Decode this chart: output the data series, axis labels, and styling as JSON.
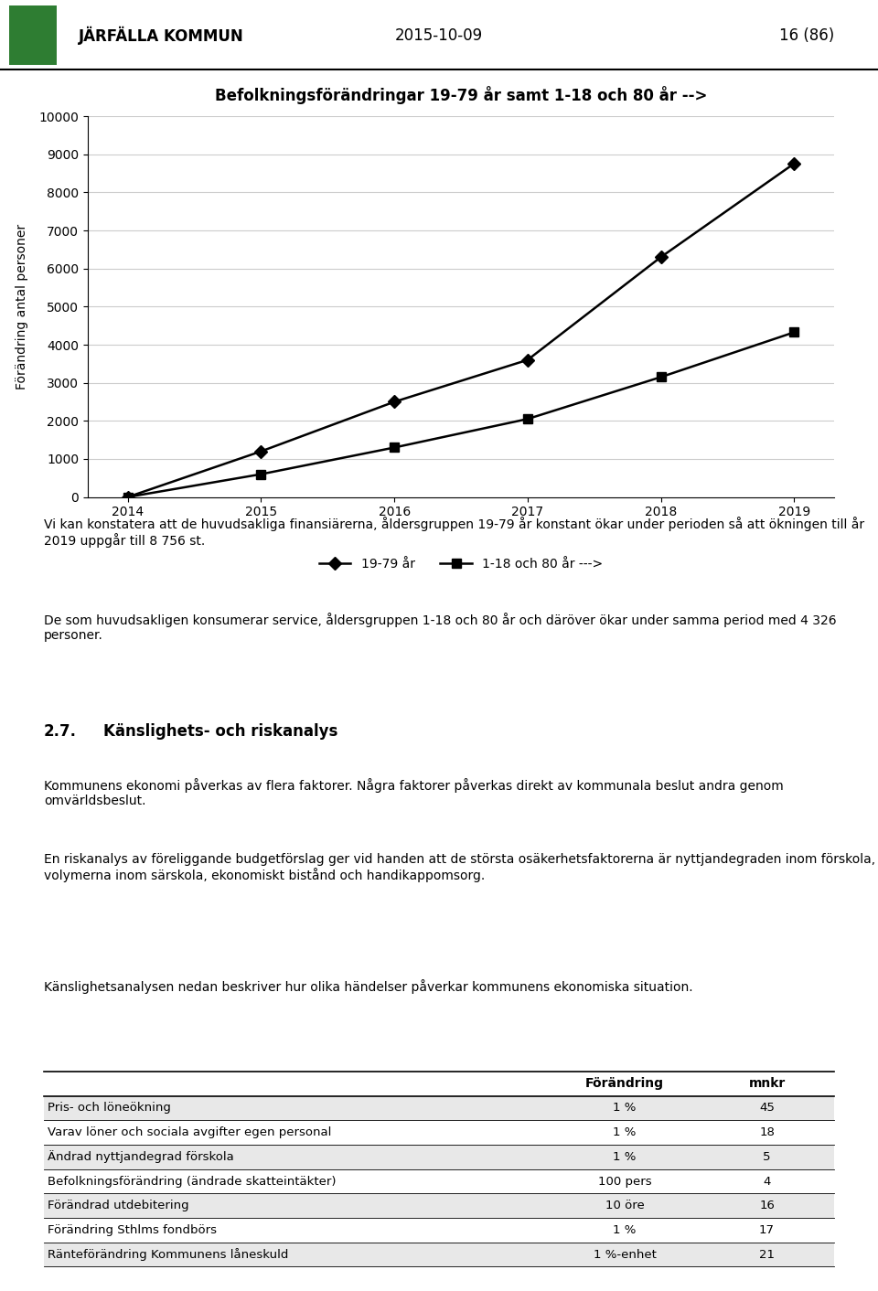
{
  "title": "Befolkningsförändringar 19-79 år samt 1-18 och 80 år -->",
  "xlabel": "",
  "ylabel": "Förändring antal personer",
  "years": [
    2014,
    2015,
    2016,
    2017,
    2018,
    2019
  ],
  "series1_label": "19-79 år",
  "series1_values": [
    0,
    1200,
    2500,
    3600,
    6300,
    8756
  ],
  "series2_label": "1-18 och 80 år --->",
  "series2_values": [
    0,
    600,
    1300,
    2050,
    3150,
    4326
  ],
  "ylim": [
    0,
    10000
  ],
  "yticks": [
    0,
    1000,
    2000,
    3000,
    4000,
    5000,
    6000,
    7000,
    8000,
    9000,
    10000
  ],
  "line_color": "#000000",
  "bg_color": "#ffffff",
  "header_date": "2015-10-09",
  "header_page": "16 (86)",
  "header_org": "JÄRFÄLLA KOMMUN",
  "para1": "Vi kan konstatera att de huvudsakliga finansiärerna, åldersgruppen 19-79 år konstant ökar under perioden så att ökningen till år 2019 uppgår till 8 756 st.",
  "para2": "De som huvudsakligen konsumerar service, åldersgruppen 1-18 och 80 år och däröver ökar under samma period med 4 326 personer.",
  "section_num": "2.7.",
  "section_title": "Känslighets- och riskanalys",
  "section_para1": "Kommunens ekonomi påverkas av flera faktorer. Några faktorer påverkas direkt av kommunala beslut andra genom omvärldsbeslut.",
  "section_para2": "En riskanalys av föreliggande budgetförslag ger vid handen att de största osäkerhetsfaktorerna är nyttjandegraden inom förskola, volymerna inom särskola, ekonomiskt bistånd och handikappomsorg.",
  "section_para3": "Känslighetsanalysen nedan beskriver hur olika händelser påverkar kommunens ekonomiska situation.",
  "table_headers": [
    "",
    "Förändring",
    "mnkr"
  ],
  "table_rows": [
    [
      "Pris- och löneökning",
      "1 %",
      "45"
    ],
    [
      "Varav löner och sociala avgifter egen personal",
      "1 %",
      "18"
    ],
    [
      "Ändrad nyttjandegrad förskola",
      "1 %",
      "5"
    ],
    [
      "Befolkningsförändring (ändrade skatteintäkter)",
      "100 pers",
      "4"
    ],
    [
      "Förändrad utdebitering",
      "10 öre",
      "16"
    ],
    [
      "Förändring Sthlms fondbörs",
      "1 %",
      "17"
    ],
    [
      "Ränteförändring Kommunens låneskuld",
      "1 %-enhet",
      "21"
    ]
  ]
}
